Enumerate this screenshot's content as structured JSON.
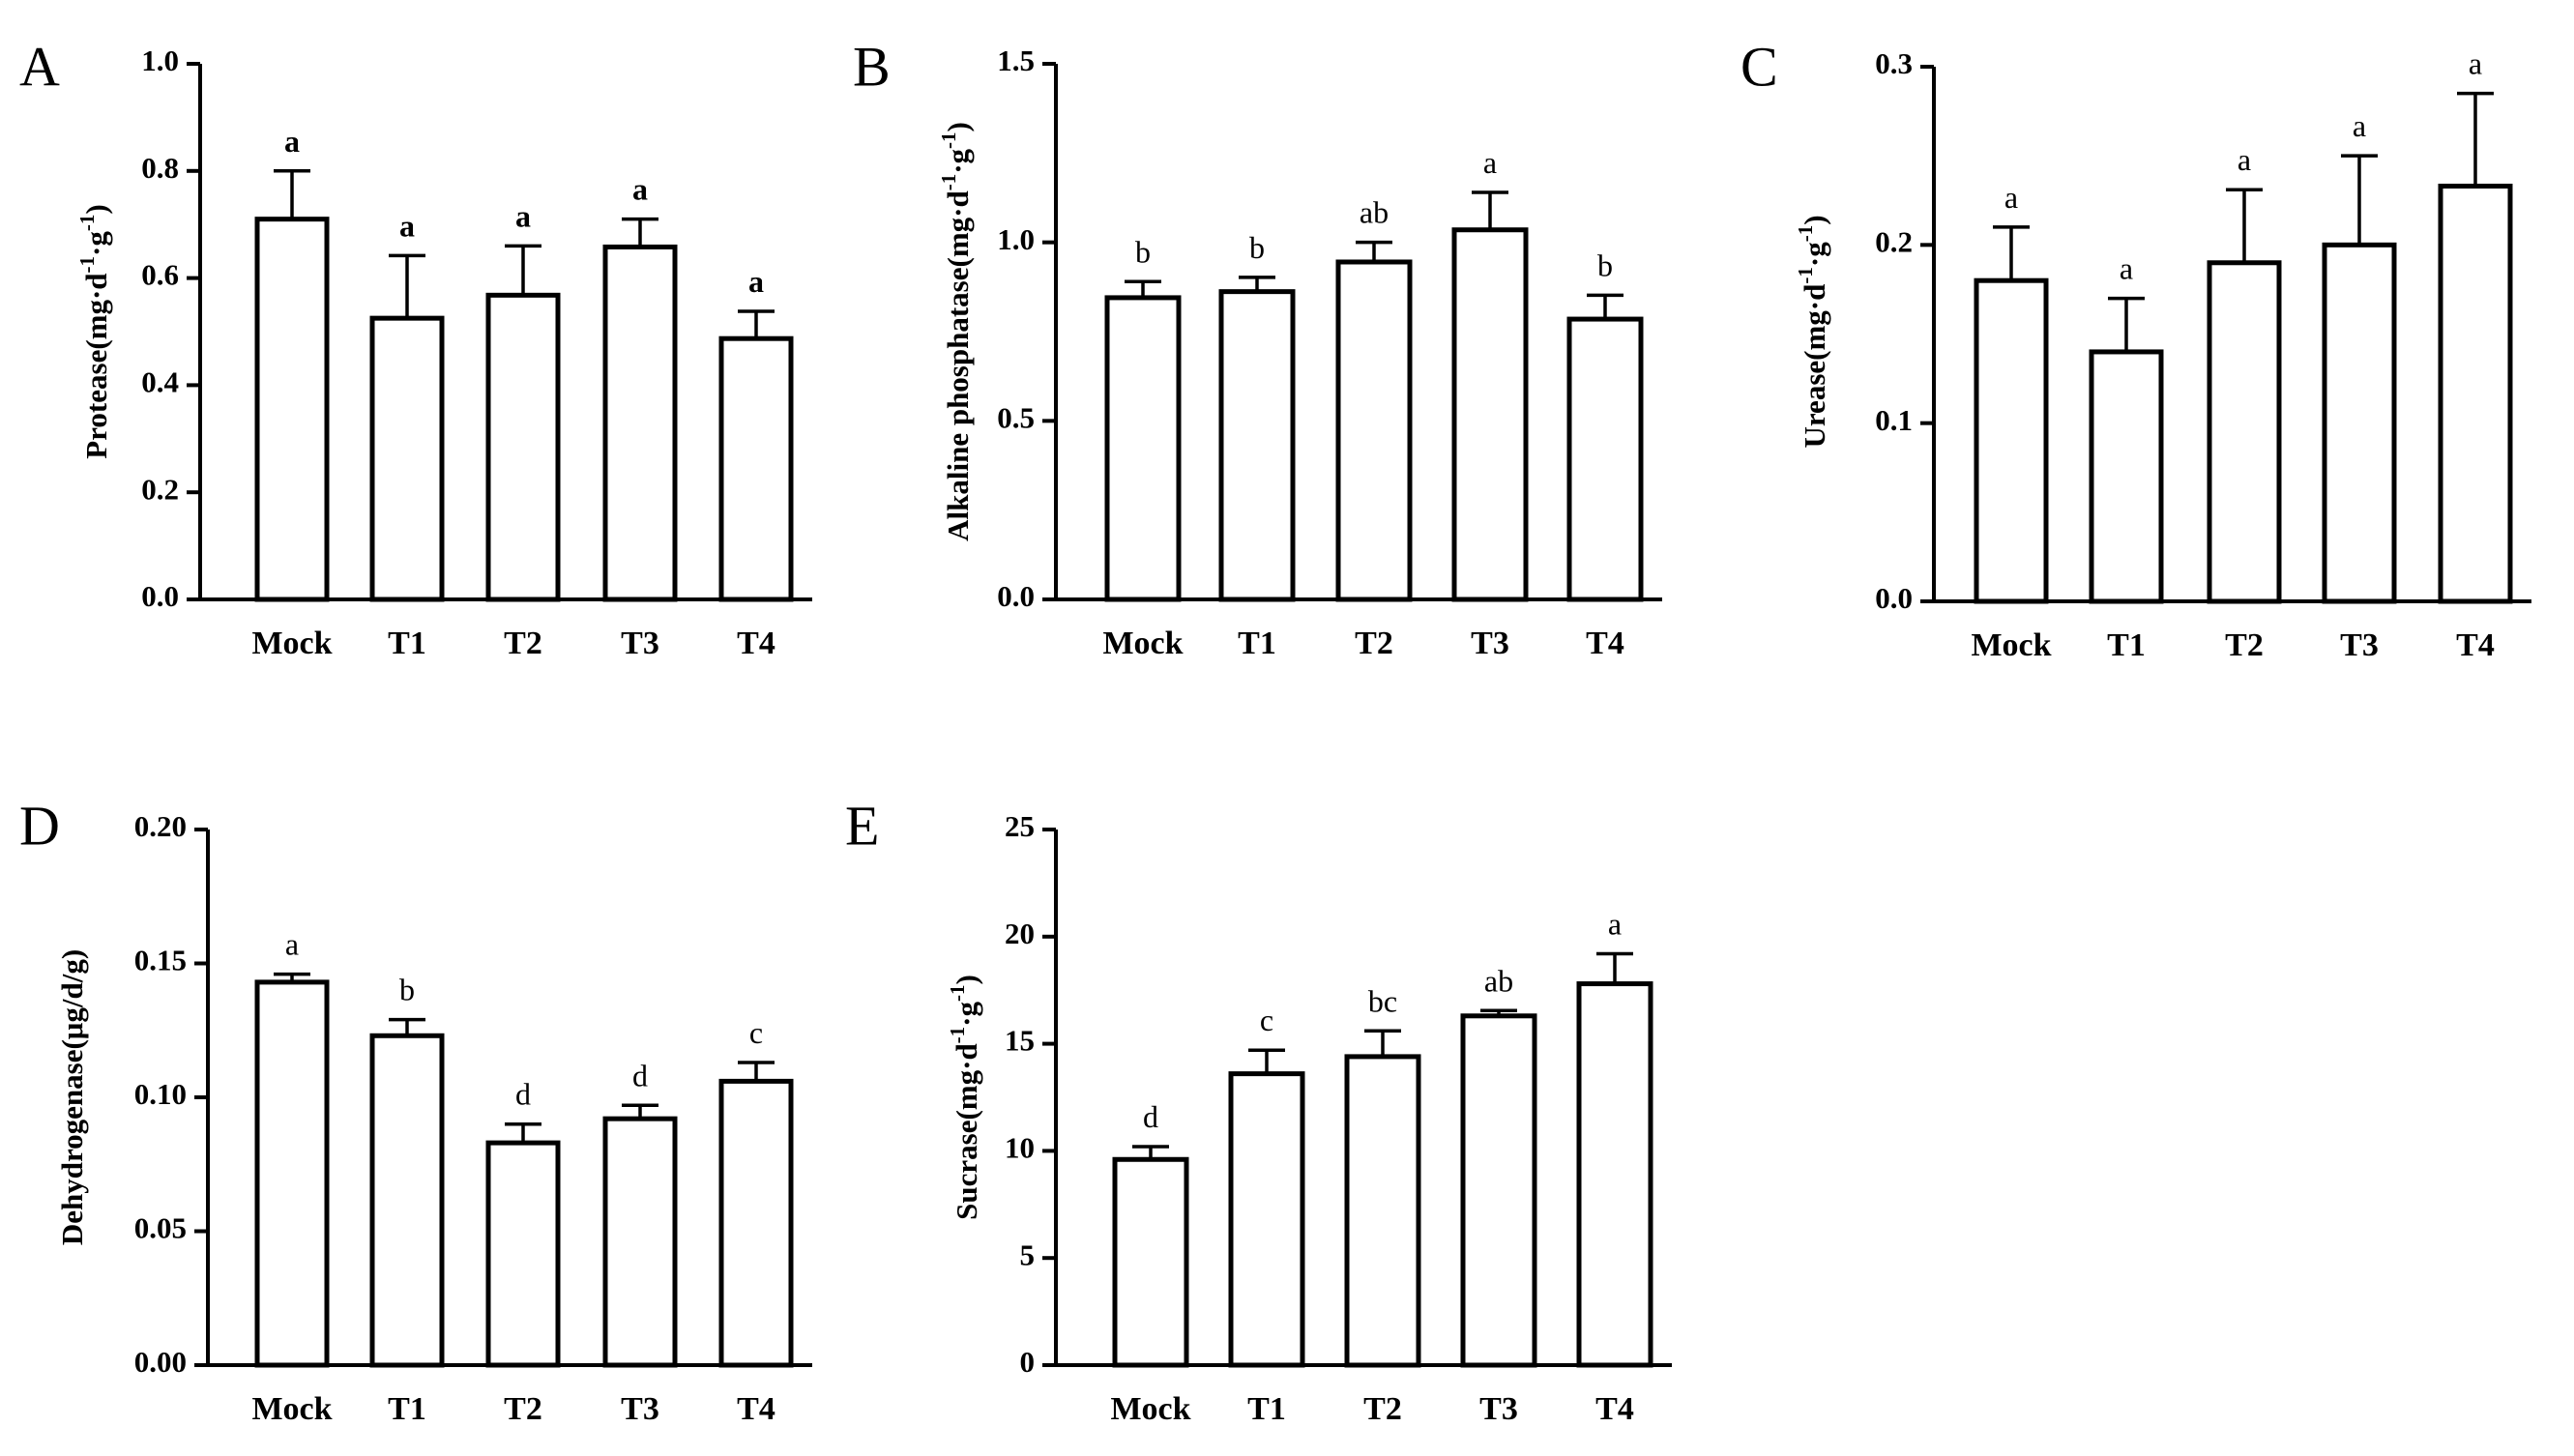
{
  "chart_data": [
    {
      "panel": "A",
      "type": "bar",
      "ylabel": "Protease(mg·d",
      "ylabel_unit": "·g",
      "ylabel_sup": "-1",
      "ylabel_close": ")",
      "categories": [
        "Mock",
        "T1",
        "T2",
        "T3",
        "T4"
      ],
      "values": [
        0.71,
        0.525,
        0.568,
        0.658,
        0.487
      ],
      "errors": [
        0.09,
        0.117,
        0.092,
        0.052,
        0.051
      ],
      "letters": [
        "a",
        "a",
        "a",
        "a",
        "a"
      ],
      "letters_bold": true,
      "ylim": [
        0,
        1.0
      ],
      "yticks": [
        "0.0",
        "0.2",
        "0.4",
        "0.6",
        "0.8",
        "1.0"
      ]
    },
    {
      "panel": "B",
      "type": "bar",
      "ylabel": "Alkaline phosphatase(mg·d",
      "ylabel_unit": "·g",
      "ylabel_sup": "-1",
      "ylabel_close": ")",
      "categories": [
        "Mock",
        "T1",
        "T2",
        "T3",
        "T4"
      ],
      "values": [
        0.845,
        0.862,
        0.945,
        1.035,
        0.785
      ],
      "errors": [
        0.045,
        0.04,
        0.055,
        0.105,
        0.067
      ],
      "letters": [
        "b",
        "b",
        "ab",
        "a",
        "b"
      ],
      "letters_bold": false,
      "ylim": [
        0,
        1.5
      ],
      "yticks": [
        "0.0",
        "0.5",
        "1.0",
        "1.5"
      ]
    },
    {
      "panel": "C",
      "type": "bar",
      "ylabel": "Urease(mg·d",
      "ylabel_unit": "·g",
      "ylabel_sup": "-1",
      "ylabel_close": ")",
      "categories": [
        "Mock",
        "T1",
        "T2",
        "T3",
        "T4"
      ],
      "values": [
        0.18,
        0.14,
        0.19,
        0.2,
        0.233
      ],
      "errors": [
        0.03,
        0.03,
        0.041,
        0.05,
        0.052
      ],
      "letters": [
        "a",
        "a",
        "a",
        "a",
        "a"
      ],
      "letters_bold": false,
      "ylim": [
        0,
        0.3
      ],
      "yticks": [
        "0.0",
        "0.1",
        "0.2",
        "0.3"
      ]
    },
    {
      "panel": "D",
      "type": "bar",
      "ylabel": "Dehydrogenase(μg/d/g)",
      "categories": [
        "Mock",
        "T1",
        "T2",
        "T3",
        "T4"
      ],
      "values": [
        0.143,
        0.123,
        0.083,
        0.092,
        0.106
      ],
      "errors": [
        0.003,
        0.006,
        0.007,
        0.005,
        0.007
      ],
      "letters": [
        "a",
        "b",
        "d",
        "d",
        "c"
      ],
      "letters_bold": false,
      "ylim": [
        0,
        0.2
      ],
      "yticks": [
        "0.00",
        "0.05",
        "0.10",
        "0.15",
        "0.20"
      ]
    },
    {
      "panel": "E",
      "type": "bar",
      "ylabel": "Sucrase(mg·d",
      "ylabel_unit": "·g",
      "ylabel_sup": "-1",
      "ylabel_close": ")",
      "categories": [
        "Mock",
        "T1",
        "T2",
        "T3",
        "T4"
      ],
      "values": [
        9.6,
        13.6,
        14.4,
        16.3,
        17.8
      ],
      "errors": [
        0.6,
        1.1,
        1.2,
        0.25,
        1.4
      ],
      "letters": [
        "d",
        "c",
        "bc",
        "ab",
        "a"
      ],
      "letters_bold": false,
      "ylim": [
        0,
        25
      ],
      "yticks": [
        "0",
        "5",
        "10",
        "15",
        "20",
        "25"
      ]
    }
  ]
}
